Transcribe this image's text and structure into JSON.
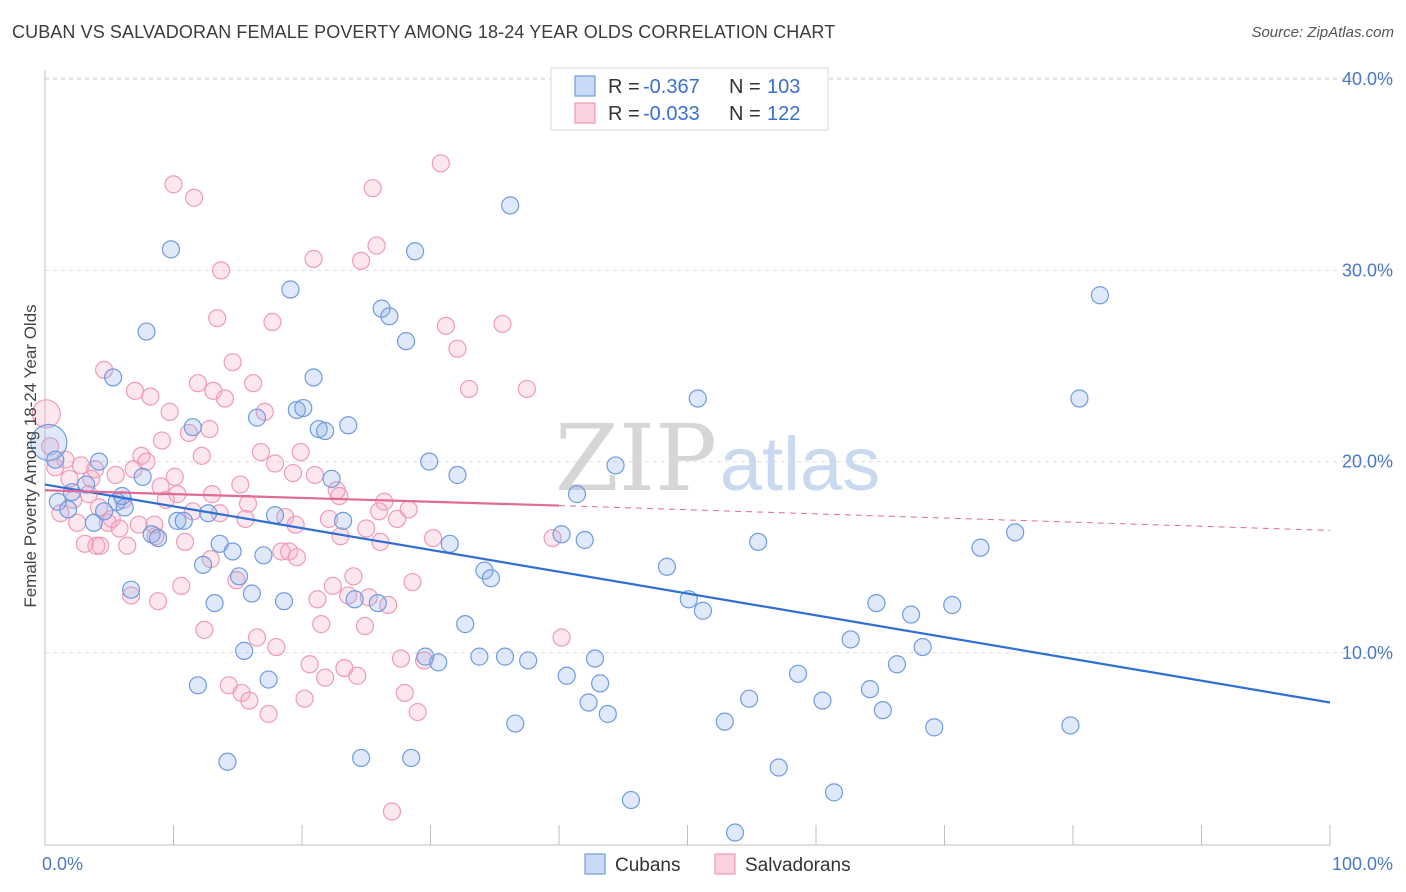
{
  "header": {
    "title": "CUBAN VS SALVADORAN FEMALE POVERTY AMONG 18-24 YEAR OLDS CORRELATION CHART",
    "source": "Source: ZipAtlas.com"
  },
  "watermark": {
    "zip": "ZIP",
    "atlas": "atlas"
  },
  "legend": {
    "r_label": "R =",
    "n_label": "N =",
    "rows": [
      {
        "r": "-0.367",
        "n": "103"
      },
      {
        "r": "-0.033",
        "n": "122"
      }
    ]
  },
  "bottom_legend": {
    "items": [
      "Cubans",
      "Salvadorans"
    ]
  },
  "chart_data": {
    "type": "scatter",
    "ylabel": "Female Poverty Among 18-24 Year Olds",
    "xlabel": "",
    "x_tick_labels": [
      "0.0%",
      "100.0%"
    ],
    "y_tick_labels": [
      "10.0%",
      "20.0%",
      "30.0%",
      "40.0%"
    ],
    "y_ticks": [
      10,
      20,
      30,
      40
    ],
    "xlim": [
      0,
      100
    ],
    "ylim": [
      0,
      41
    ],
    "grid": true,
    "legend_position": "top-center",
    "colors": {
      "cubans": "#6f9be0",
      "salvadorans": "#f09ab8",
      "cubans_line": "#2f6fd4",
      "salvadorans_line": "#e06a98"
    },
    "series": [
      {
        "name": "Cubans",
        "r": -0.367,
        "n": 103,
        "trend": {
          "x": [
            0,
            100
          ],
          "y": [
            18.8,
            7.4
          ]
        },
        "points": [
          [
            0.3,
            21.0
          ],
          [
            0.8,
            20.1
          ],
          [
            1.0,
            17.9
          ],
          [
            1.8,
            17.5
          ],
          [
            2.1,
            18.4
          ],
          [
            3.2,
            18.8
          ],
          [
            3.8,
            16.8
          ],
          [
            4.2,
            20.0
          ],
          [
            4.6,
            17.4
          ],
          [
            5.3,
            24.4
          ],
          [
            5.6,
            17.9
          ],
          [
            6.2,
            17.6
          ],
          [
            6.7,
            13.3
          ],
          [
            7.6,
            19.2
          ],
          [
            7.9,
            26.8
          ],
          [
            8.3,
            16.2
          ],
          [
            8.8,
            16.0
          ],
          [
            9.8,
            31.1
          ],
          [
            10.3,
            16.9
          ],
          [
            10.8,
            16.9
          ],
          [
            11.5,
            21.8
          ],
          [
            11.9,
            8.3
          ],
          [
            12.3,
            14.6
          ],
          [
            12.7,
            17.3
          ],
          [
            13.2,
            12.6
          ],
          [
            13.6,
            15.7
          ],
          [
            14.2,
            4.3
          ],
          [
            14.6,
            15.3
          ],
          [
            15.1,
            14.0
          ],
          [
            15.5,
            10.1
          ],
          [
            16.1,
            13.1
          ],
          [
            16.5,
            22.3
          ],
          [
            17.0,
            15.1
          ],
          [
            17.4,
            8.6
          ],
          [
            17.9,
            17.2
          ],
          [
            18.6,
            12.7
          ],
          [
            19.1,
            29.0
          ],
          [
            19.6,
            22.7
          ],
          [
            20.1,
            22.8
          ],
          [
            20.9,
            24.4
          ],
          [
            21.3,
            21.7
          ],
          [
            21.8,
            21.6
          ],
          [
            22.3,
            19.1
          ],
          [
            23.2,
            16.9
          ],
          [
            23.6,
            21.9
          ],
          [
            24.1,
            12.8
          ],
          [
            24.6,
            4.5
          ],
          [
            25.9,
            12.6
          ],
          [
            26.2,
            28.0
          ],
          [
            26.8,
            27.6
          ],
          [
            28.1,
            26.3
          ],
          [
            28.5,
            4.5
          ],
          [
            28.8,
            31.0
          ],
          [
            29.6,
            9.8
          ],
          [
            29.9,
            20.0
          ],
          [
            30.6,
            9.5
          ],
          [
            31.5,
            15.7
          ],
          [
            32.1,
            19.3
          ],
          [
            32.7,
            11.5
          ],
          [
            33.8,
            9.8
          ],
          [
            34.2,
            14.3
          ],
          [
            34.7,
            13.9
          ],
          [
            35.8,
            9.8
          ],
          [
            36.2,
            33.4
          ],
          [
            36.6,
            6.3
          ],
          [
            37.6,
            9.6
          ],
          [
            40.2,
            16.2
          ],
          [
            40.6,
            8.8
          ],
          [
            41.4,
            18.3
          ],
          [
            42.0,
            15.9
          ],
          [
            42.3,
            7.4
          ],
          [
            42.8,
            9.7
          ],
          [
            43.2,
            8.4
          ],
          [
            43.8,
            6.8
          ],
          [
            44.4,
            19.8
          ],
          [
            45.6,
            2.3
          ],
          [
            48.4,
            14.5
          ],
          [
            50.1,
            12.8
          ],
          [
            50.8,
            23.3
          ],
          [
            51.2,
            12.2
          ],
          [
            52.9,
            6.4
          ],
          [
            53.7,
            0.6
          ],
          [
            54.8,
            7.6
          ],
          [
            55.5,
            15.8
          ],
          [
            57.1,
            4.0
          ],
          [
            58.6,
            8.9
          ],
          [
            60.5,
            7.5
          ],
          [
            61.4,
            2.7
          ],
          [
            62.7,
            10.7
          ],
          [
            64.2,
            8.1
          ],
          [
            64.7,
            12.6
          ],
          [
            65.2,
            7.0
          ],
          [
            66.3,
            9.4
          ],
          [
            67.4,
            12.0
          ],
          [
            68.3,
            10.3
          ],
          [
            69.2,
            6.1
          ],
          [
            70.6,
            12.5
          ],
          [
            72.8,
            15.5
          ],
          [
            75.5,
            16.3
          ],
          [
            79.8,
            6.2
          ],
          [
            80.5,
            23.3
          ],
          [
            82.1,
            28.7
          ],
          [
            6.0,
            18.2
          ]
        ]
      },
      {
        "name": "Salvadorans",
        "r": -0.033,
        "n": 122,
        "trend": {
          "x": [
            0,
            40
          ],
          "y": [
            18.5,
            17.7
          ]
        },
        "trend_dashed": {
          "x": [
            40,
            100
          ],
          "y": [
            17.7,
            16.4
          ]
        },
        "points": [
          [
            0.1,
            22.5
          ],
          [
            0.4,
            20.8
          ],
          [
            0.8,
            19.7
          ],
          [
            1.2,
            17.3
          ],
          [
            1.6,
            20.1
          ],
          [
            1.9,
            19.1
          ],
          [
            2.2,
            18.0
          ],
          [
            2.5,
            16.8
          ],
          [
            2.8,
            19.8
          ],
          [
            3.1,
            15.7
          ],
          [
            3.4,
            18.3
          ],
          [
            3.6,
            19.1
          ],
          [
            4.0,
            15.6
          ],
          [
            4.3,
            15.6
          ],
          [
            4.6,
            24.8
          ],
          [
            4.9,
            16.8
          ],
          [
            5.2,
            17.0
          ],
          [
            5.5,
            19.3
          ],
          [
            5.8,
            16.5
          ],
          [
            6.1,
            18.0
          ],
          [
            6.4,
            15.6
          ],
          [
            6.7,
            13.0
          ],
          [
            7.0,
            23.7
          ],
          [
            7.3,
            16.7
          ],
          [
            7.5,
            20.3
          ],
          [
            7.9,
            20.0
          ],
          [
            8.2,
            23.4
          ],
          [
            8.5,
            16.7
          ],
          [
            8.8,
            12.7
          ],
          [
            9.1,
            21.1
          ],
          [
            9.4,
            18.0
          ],
          [
            9.7,
            22.6
          ],
          [
            10.0,
            34.5
          ],
          [
            10.3,
            18.3
          ],
          [
            10.6,
            13.5
          ],
          [
            10.9,
            15.8
          ],
          [
            11.2,
            21.5
          ],
          [
            11.6,
            33.8
          ],
          [
            11.9,
            24.1
          ],
          [
            12.2,
            20.3
          ],
          [
            12.4,
            11.2
          ],
          [
            12.8,
            21.7
          ],
          [
            13.1,
            23.7
          ],
          [
            13.4,
            27.5
          ],
          [
            13.7,
            30.0
          ],
          [
            14.0,
            23.3
          ],
          [
            14.3,
            8.3
          ],
          [
            14.6,
            25.2
          ],
          [
            14.9,
            13.8
          ],
          [
            15.3,
            7.9
          ],
          [
            15.6,
            17.0
          ],
          [
            15.9,
            7.5
          ],
          [
            16.2,
            24.1
          ],
          [
            16.5,
            10.8
          ],
          [
            16.8,
            20.5
          ],
          [
            17.1,
            22.6
          ],
          [
            17.4,
            6.8
          ],
          [
            17.7,
            27.3
          ],
          [
            18.0,
            10.3
          ],
          [
            18.4,
            15.3
          ],
          [
            18.7,
            17.1
          ],
          [
            19.0,
            15.3
          ],
          [
            19.3,
            19.4
          ],
          [
            19.6,
            15.0
          ],
          [
            19.9,
            20.5
          ],
          [
            20.2,
            7.6
          ],
          [
            20.6,
            9.4
          ],
          [
            20.9,
            30.6
          ],
          [
            21.2,
            12.8
          ],
          [
            21.5,
            11.5
          ],
          [
            21.8,
            8.7
          ],
          [
            22.1,
            17.0
          ],
          [
            22.4,
            13.5
          ],
          [
            22.7,
            18.5
          ],
          [
            23.0,
            16.1
          ],
          [
            23.3,
            9.2
          ],
          [
            23.6,
            13.0
          ],
          [
            24.0,
            14.0
          ],
          [
            24.3,
            8.8
          ],
          [
            24.6,
            30.5
          ],
          [
            24.9,
            11.4
          ],
          [
            25.2,
            12.9
          ],
          [
            25.5,
            34.3
          ],
          [
            25.8,
            31.3
          ],
          [
            26.1,
            15.8
          ],
          [
            26.4,
            17.9
          ],
          [
            26.7,
            12.5
          ],
          [
            27.0,
            1.7
          ],
          [
            27.4,
            17.0
          ],
          [
            27.7,
            9.7
          ],
          [
            28.0,
            7.9
          ],
          [
            28.3,
            17.5
          ],
          [
            28.6,
            13.7
          ],
          [
            29.0,
            6.9
          ],
          [
            29.5,
            9.6
          ],
          [
            30.2,
            16.0
          ],
          [
            30.8,
            35.6
          ],
          [
            31.2,
            27.1
          ],
          [
            32.1,
            25.9
          ],
          [
            33.0,
            23.8
          ],
          [
            35.6,
            27.2
          ],
          [
            37.5,
            23.8
          ],
          [
            39.5,
            16.0
          ],
          [
            40.2,
            10.8
          ],
          [
            25.0,
            16.5
          ],
          [
            3.9,
            19.6
          ],
          [
            13.0,
            18.3
          ],
          [
            9.0,
            18.7
          ],
          [
            11.5,
            17.4
          ],
          [
            15.2,
            18.8
          ],
          [
            6.9,
            19.6
          ],
          [
            10.1,
            19.2
          ],
          [
            13.6,
            17.3
          ],
          [
            15.8,
            17.8
          ],
          [
            8.6,
            16.1
          ],
          [
            12.9,
            14.9
          ],
          [
            4.2,
            17.6
          ],
          [
            19.5,
            16.7
          ],
          [
            17.9,
            19.9
          ],
          [
            22.9,
            18.2
          ],
          [
            21.0,
            19.3
          ],
          [
            26.0,
            17.4
          ]
        ]
      }
    ]
  }
}
